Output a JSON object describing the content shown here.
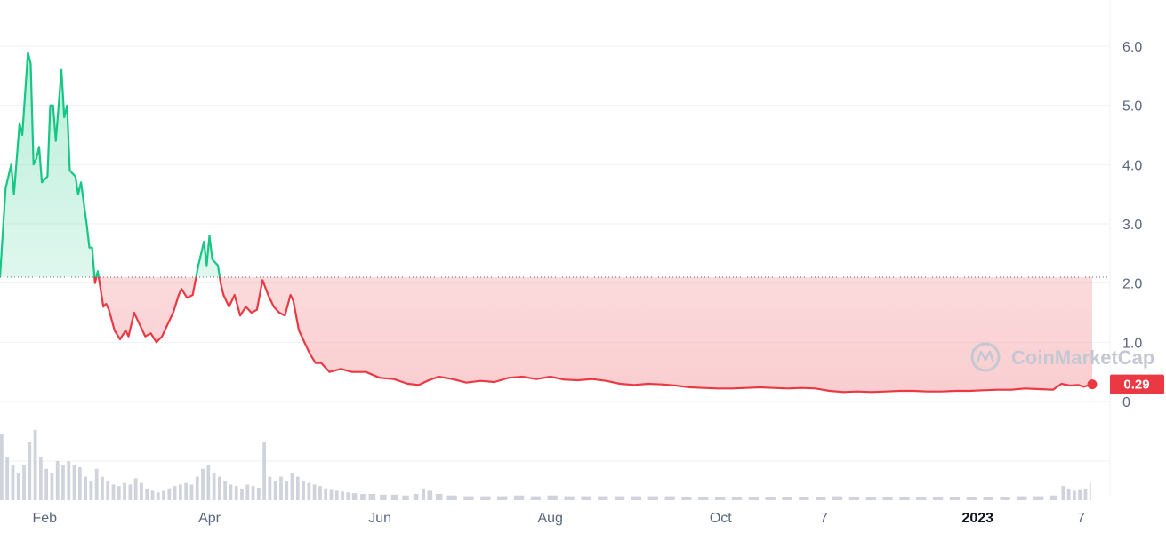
{
  "chart_data": {
    "type": "area",
    "title": "",
    "xlabel": "",
    "ylabel": "",
    "ylim": [
      0,
      6.9
    ],
    "y_ticks": [
      0,
      1.0,
      2.0,
      3.0,
      4.0,
      5.0,
      6.0
    ],
    "y_tick_labels": [
      "0",
      "1.0",
      "2.0",
      "3.0",
      "4.0",
      "5.0",
      "6.0"
    ],
    "x_tick_labels": [
      {
        "label": "Feb",
        "date": "2022-02-01",
        "bold": false
      },
      {
        "label": "Apr",
        "date": "2022-04-01",
        "bold": false
      },
      {
        "label": "Jun",
        "date": "2022-06-01",
        "bold": false
      },
      {
        "label": "Aug",
        "date": "2022-08-01",
        "bold": false
      },
      {
        "label": "Oct",
        "date": "2022-10-01",
        "bold": false
      },
      {
        "label": "7",
        "date": "2022-11-07",
        "bold": false
      },
      {
        "label": "2023",
        "date": "2023-01-01",
        "bold": true
      },
      {
        "label": "7",
        "date": "2023-02-07",
        "bold": false
      }
    ],
    "x_start": "2022-01-16",
    "x_end": "2023-02-11",
    "baseline": 2.1,
    "current_price_label": "0.29",
    "grid": true,
    "colors": {
      "up": "#16c784",
      "down": "#ea3943",
      "volume": "#cfd3db",
      "grid": "#eff2f5"
    },
    "watermark": "CoinMarketCap",
    "series": [
      {
        "values": [
          [
            "2022-01-16",
            2.1
          ],
          [
            "2022-01-18",
            3.6
          ],
          [
            "2022-01-20",
            4.0
          ],
          [
            "2022-01-21",
            3.5
          ],
          [
            "2022-01-23",
            4.7
          ],
          [
            "2022-01-24",
            4.5
          ],
          [
            "2022-01-26",
            5.9
          ],
          [
            "2022-01-27",
            5.7
          ],
          [
            "2022-01-28",
            4.0
          ],
          [
            "2022-01-29",
            4.1
          ],
          [
            "2022-01-30",
            4.3
          ],
          [
            "2022-01-31",
            3.7
          ],
          [
            "2022-02-02",
            3.8
          ],
          [
            "2022-02-03",
            5.0
          ],
          [
            "2022-02-04",
            5.0
          ],
          [
            "2022-02-05",
            4.4
          ],
          [
            "2022-02-07",
            5.6
          ],
          [
            "2022-02-08",
            4.8
          ],
          [
            "2022-02-09",
            5.0
          ],
          [
            "2022-02-10",
            3.9
          ],
          [
            "2022-02-12",
            3.8
          ],
          [
            "2022-02-13",
            3.5
          ],
          [
            "2022-02-14",
            3.7
          ],
          [
            "2022-02-16",
            3.0
          ],
          [
            "2022-02-17",
            2.6
          ],
          [
            "2022-02-18",
            2.6
          ],
          [
            "2022-02-19",
            2.0
          ],
          [
            "2022-02-20",
            2.2
          ],
          [
            "2022-02-22",
            1.6
          ],
          [
            "2022-02-23",
            1.65
          ],
          [
            "2022-02-24",
            1.55
          ],
          [
            "2022-02-26",
            1.2
          ],
          [
            "2022-02-28",
            1.05
          ],
          [
            "2022-03-02",
            1.2
          ],
          [
            "2022-03-03",
            1.1
          ],
          [
            "2022-03-05",
            1.5
          ],
          [
            "2022-03-07",
            1.3
          ],
          [
            "2022-03-09",
            1.1
          ],
          [
            "2022-03-11",
            1.15
          ],
          [
            "2022-03-13",
            1.0
          ],
          [
            "2022-03-15",
            1.1
          ],
          [
            "2022-03-17",
            1.3
          ],
          [
            "2022-03-19",
            1.5
          ],
          [
            "2022-03-21",
            1.8
          ],
          [
            "2022-03-22",
            1.9
          ],
          [
            "2022-03-24",
            1.75
          ],
          [
            "2022-03-26",
            1.8
          ],
          [
            "2022-03-28",
            2.3
          ],
          [
            "2022-03-30",
            2.7
          ],
          [
            "2022-03-31",
            2.3
          ],
          [
            "2022-04-01",
            2.8
          ],
          [
            "2022-04-02",
            2.4
          ],
          [
            "2022-04-04",
            2.3
          ],
          [
            "2022-04-05",
            2.0
          ],
          [
            "2022-04-06",
            1.8
          ],
          [
            "2022-04-08",
            1.6
          ],
          [
            "2022-04-10",
            1.8
          ],
          [
            "2022-04-12",
            1.45
          ],
          [
            "2022-04-14",
            1.6
          ],
          [
            "2022-04-16",
            1.5
          ],
          [
            "2022-04-18",
            1.55
          ],
          [
            "2022-04-20",
            2.05
          ],
          [
            "2022-04-22",
            1.8
          ],
          [
            "2022-04-24",
            1.6
          ],
          [
            "2022-04-26",
            1.5
          ],
          [
            "2022-04-28",
            1.45
          ],
          [
            "2022-04-30",
            1.8
          ],
          [
            "2022-05-01",
            1.7
          ],
          [
            "2022-05-03",
            1.2
          ],
          [
            "2022-05-05",
            1.0
          ],
          [
            "2022-05-07",
            0.8
          ],
          [
            "2022-05-09",
            0.65
          ],
          [
            "2022-05-11",
            0.65
          ],
          [
            "2022-05-14",
            0.5
          ],
          [
            "2022-05-18",
            0.55
          ],
          [
            "2022-05-22",
            0.5
          ],
          [
            "2022-05-27",
            0.5
          ],
          [
            "2022-06-01",
            0.4
          ],
          [
            "2022-06-06",
            0.38
          ],
          [
            "2022-06-11",
            0.3
          ],
          [
            "2022-06-15",
            0.28
          ],
          [
            "2022-06-18",
            0.35
          ],
          [
            "2022-06-22",
            0.42
          ],
          [
            "2022-06-27",
            0.38
          ],
          [
            "2022-07-02",
            0.32
          ],
          [
            "2022-07-07",
            0.35
          ],
          [
            "2022-07-12",
            0.33
          ],
          [
            "2022-07-17",
            0.4
          ],
          [
            "2022-07-22",
            0.42
          ],
          [
            "2022-07-27",
            0.38
          ],
          [
            "2022-08-01",
            0.42
          ],
          [
            "2022-08-06",
            0.37
          ],
          [
            "2022-08-11",
            0.36
          ],
          [
            "2022-08-16",
            0.38
          ],
          [
            "2022-08-21",
            0.35
          ],
          [
            "2022-08-26",
            0.3
          ],
          [
            "2022-08-31",
            0.28
          ],
          [
            "2022-09-05",
            0.3
          ],
          [
            "2022-09-10",
            0.29
          ],
          [
            "2022-09-15",
            0.27
          ],
          [
            "2022-09-20",
            0.24
          ],
          [
            "2022-09-25",
            0.23
          ],
          [
            "2022-09-30",
            0.22
          ],
          [
            "2022-10-05",
            0.22
          ],
          [
            "2022-10-10",
            0.23
          ],
          [
            "2022-10-15",
            0.24
          ],
          [
            "2022-10-20",
            0.23
          ],
          [
            "2022-10-25",
            0.22
          ],
          [
            "2022-10-30",
            0.23
          ],
          [
            "2022-11-04",
            0.22
          ],
          [
            "2022-11-09",
            0.18
          ],
          [
            "2022-11-14",
            0.16
          ],
          [
            "2022-11-19",
            0.17
          ],
          [
            "2022-11-24",
            0.16
          ],
          [
            "2022-11-29",
            0.17
          ],
          [
            "2022-12-04",
            0.18
          ],
          [
            "2022-12-09",
            0.18
          ],
          [
            "2022-12-14",
            0.17
          ],
          [
            "2022-12-19",
            0.17
          ],
          [
            "2022-12-24",
            0.18
          ],
          [
            "2022-12-29",
            0.18
          ],
          [
            "2023-01-03",
            0.19
          ],
          [
            "2023-01-08",
            0.2
          ],
          [
            "2023-01-13",
            0.2
          ],
          [
            "2023-01-18",
            0.22
          ],
          [
            "2023-01-23",
            0.21
          ],
          [
            "2023-01-28",
            0.2
          ],
          [
            "2023-01-31",
            0.3
          ],
          [
            "2023-02-03",
            0.27
          ],
          [
            "2023-02-06",
            0.28
          ],
          [
            "2023-02-08",
            0.25
          ],
          [
            "2023-02-11",
            0.29
          ]
        ]
      }
    ],
    "volume": [
      [
        "2022-01-16",
        0.85
      ],
      [
        "2022-01-18",
        0.55
      ],
      [
        "2022-01-20",
        0.45
      ],
      [
        "2022-01-22",
        0.35
      ],
      [
        "2022-01-24",
        0.45
      ],
      [
        "2022-01-26",
        0.75
      ],
      [
        "2022-01-28",
        0.9
      ],
      [
        "2022-01-30",
        0.55
      ],
      [
        "2022-02-01",
        0.4
      ],
      [
        "2022-02-03",
        0.35
      ],
      [
        "2022-02-05",
        0.5
      ],
      [
        "2022-02-07",
        0.45
      ],
      [
        "2022-02-09",
        0.5
      ],
      [
        "2022-02-11",
        0.45
      ],
      [
        "2022-02-13",
        0.42
      ],
      [
        "2022-02-15",
        0.3
      ],
      [
        "2022-02-17",
        0.25
      ],
      [
        "2022-02-19",
        0.4
      ],
      [
        "2022-02-21",
        0.3
      ],
      [
        "2022-02-23",
        0.25
      ],
      [
        "2022-02-25",
        0.2
      ],
      [
        "2022-02-27",
        0.18
      ],
      [
        "2022-03-01",
        0.22
      ],
      [
        "2022-03-03",
        0.2
      ],
      [
        "2022-03-05",
        0.28
      ],
      [
        "2022-03-07",
        0.22
      ],
      [
        "2022-03-09",
        0.15
      ],
      [
        "2022-03-11",
        0.12
      ],
      [
        "2022-03-13",
        0.1
      ],
      [
        "2022-03-15",
        0.12
      ],
      [
        "2022-03-17",
        0.15
      ],
      [
        "2022-03-19",
        0.18
      ],
      [
        "2022-03-21",
        0.2
      ],
      [
        "2022-03-23",
        0.22
      ],
      [
        "2022-03-25",
        0.2
      ],
      [
        "2022-03-27",
        0.3
      ],
      [
        "2022-03-29",
        0.4
      ],
      [
        "2022-03-31",
        0.45
      ],
      [
        "2022-04-02",
        0.35
      ],
      [
        "2022-04-04",
        0.3
      ],
      [
        "2022-04-06",
        0.25
      ],
      [
        "2022-04-08",
        0.2
      ],
      [
        "2022-04-10",
        0.18
      ],
      [
        "2022-04-12",
        0.15
      ],
      [
        "2022-04-14",
        0.2
      ],
      [
        "2022-04-16",
        0.18
      ],
      [
        "2022-04-18",
        0.16
      ],
      [
        "2022-04-20",
        0.75
      ],
      [
        "2022-04-22",
        0.3
      ],
      [
        "2022-04-24",
        0.25
      ],
      [
        "2022-04-26",
        0.3
      ],
      [
        "2022-04-28",
        0.25
      ],
      [
        "2022-04-30",
        0.35
      ],
      [
        "2022-05-02",
        0.3
      ],
      [
        "2022-05-04",
        0.25
      ],
      [
        "2022-05-06",
        0.22
      ],
      [
        "2022-05-08",
        0.2
      ],
      [
        "2022-05-10",
        0.18
      ],
      [
        "2022-05-12",
        0.15
      ],
      [
        "2022-05-14",
        0.13
      ],
      [
        "2022-05-16",
        0.12
      ],
      [
        "2022-05-18",
        0.11
      ],
      [
        "2022-05-20",
        0.1
      ],
      [
        "2022-05-22",
        0.09
      ],
      [
        "2022-05-25",
        0.08
      ],
      [
        "2022-05-28",
        0.08
      ],
      [
        "2022-06-01",
        0.07
      ],
      [
        "2022-06-05",
        0.07
      ],
      [
        "2022-06-09",
        0.06
      ],
      [
        "2022-06-13",
        0.08
      ],
      [
        "2022-06-16",
        0.15
      ],
      [
        "2022-06-18",
        0.12
      ],
      [
        "2022-06-21",
        0.08
      ],
      [
        "2022-06-25",
        0.06
      ],
      [
        "2022-07-01",
        0.05
      ],
      [
        "2022-07-07",
        0.05
      ],
      [
        "2022-07-13",
        0.05
      ],
      [
        "2022-07-19",
        0.06
      ],
      [
        "2022-07-25",
        0.05
      ],
      [
        "2022-07-31",
        0.06
      ],
      [
        "2022-08-06",
        0.05
      ],
      [
        "2022-08-12",
        0.05
      ],
      [
        "2022-08-18",
        0.05
      ],
      [
        "2022-08-24",
        0.05
      ],
      [
        "2022-08-30",
        0.05
      ],
      [
        "2022-09-05",
        0.05
      ],
      [
        "2022-09-11",
        0.05
      ],
      [
        "2022-09-17",
        0.04
      ],
      [
        "2022-09-23",
        0.04
      ],
      [
        "2022-09-29",
        0.04
      ],
      [
        "2022-10-05",
        0.04
      ],
      [
        "2022-10-11",
        0.04
      ],
      [
        "2022-10-17",
        0.04
      ],
      [
        "2022-10-23",
        0.04
      ],
      [
        "2022-10-29",
        0.04
      ],
      [
        "2022-11-04",
        0.04
      ],
      [
        "2022-11-10",
        0.05
      ],
      [
        "2022-11-16",
        0.04
      ],
      [
        "2022-11-22",
        0.04
      ],
      [
        "2022-11-28",
        0.04
      ],
      [
        "2022-12-04",
        0.04
      ],
      [
        "2022-12-10",
        0.04
      ],
      [
        "2022-12-16",
        0.04
      ],
      [
        "2022-12-22",
        0.04
      ],
      [
        "2022-12-28",
        0.04
      ],
      [
        "2023-01-03",
        0.04
      ],
      [
        "2023-01-09",
        0.04
      ],
      [
        "2023-01-15",
        0.05
      ],
      [
        "2023-01-21",
        0.05
      ],
      [
        "2023-01-27",
        0.06
      ],
      [
        "2023-01-31",
        0.18
      ],
      [
        "2023-02-02",
        0.15
      ],
      [
        "2023-02-04",
        0.12
      ],
      [
        "2023-02-06",
        0.13
      ],
      [
        "2023-02-08",
        0.15
      ],
      [
        "2023-02-10",
        0.22
      ]
    ]
  }
}
